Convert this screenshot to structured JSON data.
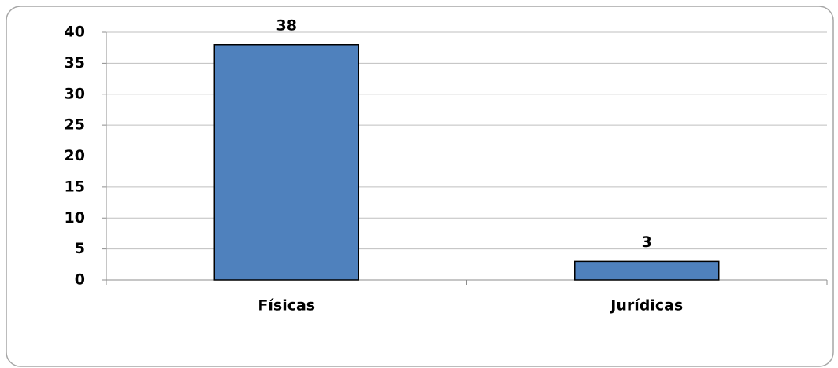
{
  "chart_data": {
    "type": "bar",
    "categories": [
      "Físicas",
      "Jurídicas"
    ],
    "values": [
      38,
      3
    ],
    "color": "#4f81bd",
    "ylim": [
      0,
      40
    ],
    "yticks": [
      0,
      5,
      10,
      15,
      20,
      25,
      30,
      35,
      40
    ],
    "grid": true,
    "data_labels": true
  }
}
